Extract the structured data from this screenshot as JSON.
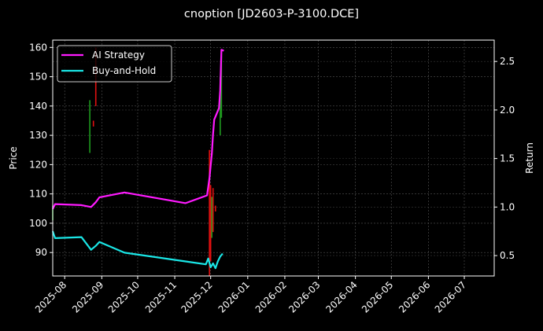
{
  "chart_data": {
    "type": "line",
    "title": "cnoption [JD2603-P-3100.DCE]",
    "xlabel": "",
    "ylabel": "Price",
    "y2label": "Return",
    "ylim": [
      82,
      162.5
    ],
    "y2lim": [
      0.29,
      2.72
    ],
    "xlim": [
      "2025-07-22",
      "2026-07-26"
    ],
    "yticks": [
      90,
      100,
      110,
      120,
      130,
      140,
      150,
      160
    ],
    "y2ticks": [
      0.5,
      1.0,
      1.5,
      2.0,
      2.5
    ],
    "xticks": [
      "2025-08",
      "2025-09",
      "2025-10",
      "2025-11",
      "2025-12",
      "2026-01",
      "2026-02",
      "2026-03",
      "2026-04",
      "2026-05",
      "2026-06",
      "2026-07"
    ],
    "grid": true,
    "legend_position": "upper left",
    "legend": [
      "AI Strategy",
      "Buy-and-Hold"
    ],
    "series": [
      {
        "name": "AI Strategy",
        "axis": "right",
        "color": "#ff1aff",
        "x": [
          "2025-07-22",
          "2025-07-24",
          "2025-08-15",
          "2025-08-23",
          "2025-08-27",
          "2025-08-30",
          "2025-09-20",
          "2025-11-10",
          "2025-11-28",
          "2025-11-30",
          "2025-12-02",
          "2025-12-03",
          "2025-12-04",
          "2025-12-08",
          "2025-12-09",
          "2025-12-10",
          "2025-12-12"
        ],
        "values": [
          0.98,
          1.03,
          1.02,
          1.0,
          1.05,
          1.1,
          1.15,
          1.04,
          1.12,
          1.3,
          1.55,
          1.75,
          1.9,
          2.02,
          2.2,
          2.62,
          2.61
        ]
      },
      {
        "name": "Buy-and-Hold",
        "axis": "right",
        "color": "#1ae6e6",
        "x": [
          "2025-07-22",
          "2025-07-24",
          "2025-08-15",
          "2025-08-23",
          "2025-08-27",
          "2025-08-30",
          "2025-09-20",
          "2025-11-10",
          "2025-11-27",
          "2025-11-29",
          "2025-12-01",
          "2025-12-03",
          "2025-12-05",
          "2025-12-07",
          "2025-12-09",
          "2025-12-11"
        ],
        "values": [
          0.75,
          0.68,
          0.69,
          0.56,
          0.6,
          0.64,
          0.53,
          0.44,
          0.41,
          0.47,
          0.38,
          0.42,
          0.37,
          0.44,
          0.49,
          0.52
        ]
      }
    ],
    "candles": {
      "axis": "left",
      "up_color": "#1f9a1f",
      "down_color": "#e01010",
      "items": [
        {
          "date": "2025-07-22",
          "low": 101,
          "high": 106,
          "color": "up"
        },
        {
          "date": "2025-08-22",
          "low": 124,
          "high": 142,
          "color": "up"
        },
        {
          "date": "2025-08-25",
          "low": 133,
          "high": 135,
          "color": "down"
        },
        {
          "date": "2025-08-27",
          "low": 140,
          "high": 160,
          "color": "down"
        },
        {
          "date": "2025-11-30",
          "low": 82,
          "high": 125,
          "color": "down"
        },
        {
          "date": "2025-12-01",
          "low": 87,
          "high": 113,
          "color": "down"
        },
        {
          "date": "2025-12-02",
          "low": 95,
          "high": 109,
          "color": "up"
        },
        {
          "date": "2025-12-03",
          "low": 97,
          "high": 112,
          "color": "down"
        },
        {
          "date": "2025-12-05",
          "low": 104,
          "high": 106,
          "color": "down"
        },
        {
          "date": "2025-12-09",
          "low": 130,
          "high": 150,
          "color": "up"
        },
        {
          "date": "2025-12-10",
          "low": 136,
          "high": 157,
          "color": "up"
        }
      ]
    }
  }
}
